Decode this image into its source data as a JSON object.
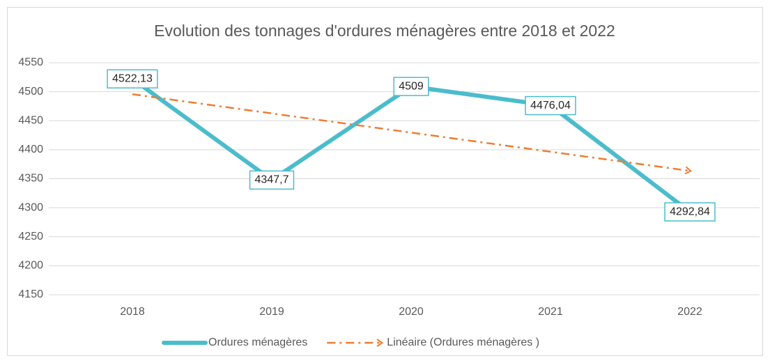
{
  "chart_data": {
    "type": "line",
    "title": "Evolution des tonnages d'ordures ménagères entre 2018 et 2022",
    "categories": [
      "2018",
      "2019",
      "2020",
      "2021",
      "2022"
    ],
    "series": [
      {
        "name": "Ordures ménagères",
        "color": "#4bbccc",
        "values": [
          4522.13,
          4347.7,
          4509,
          4476.04,
          4292.84
        ],
        "value_labels": [
          "4522,13",
          "4347,7",
          "4509",
          "4476,04",
          "4292,84"
        ]
      },
      {
        "name": "Linéaire (Ordures ménagères )",
        "color": "#ed7d31",
        "trendline": true,
        "values": [
          4495.6,
          4462.6,
          4429.5,
          4396.5,
          4363.5
        ]
      }
    ],
    "ylim": [
      4150,
      4550
    ],
    "yticks": [
      4150,
      4200,
      4250,
      4300,
      4350,
      4400,
      4450,
      4500,
      4550
    ],
    "grid": true,
    "legend": "bottom"
  }
}
